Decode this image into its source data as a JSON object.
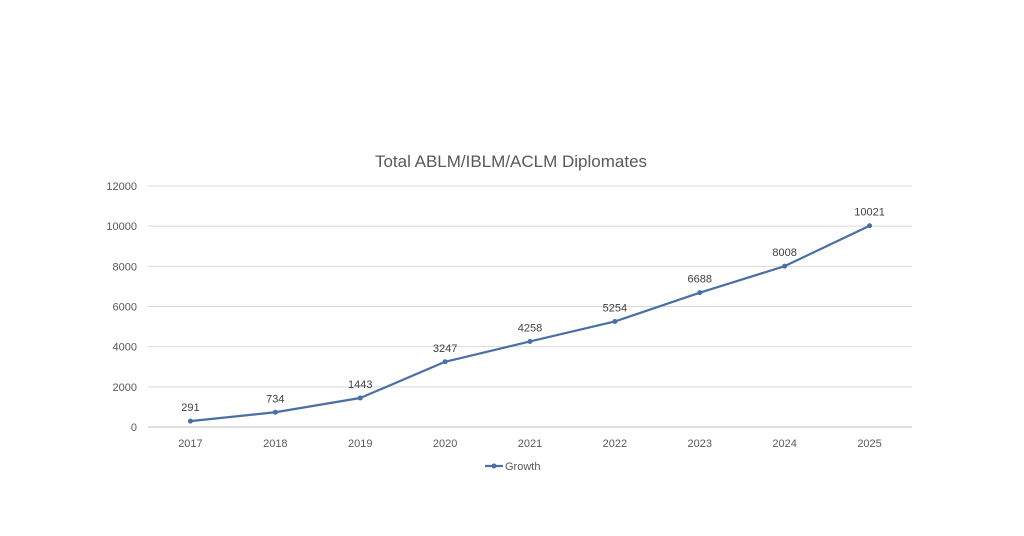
{
  "chart_data": {
    "type": "line",
    "title": "Total ABLM/IBLM/ACLM Diplomates",
    "xlabel": "",
    "ylabel": "",
    "categories": [
      "2017",
      "2018",
      "2019",
      "2020",
      "2021",
      "2022",
      "2023",
      "2024",
      "2025"
    ],
    "series": [
      {
        "name": "Growth",
        "values": [
          291,
          734,
          1443,
          3247,
          4258,
          5254,
          6688,
          8008,
          10021
        ],
        "color": "#4A6FA5"
      }
    ],
    "data_labels": true,
    "ylim": [
      0,
      12000
    ],
    "yticks": [
      0,
      2000,
      4000,
      6000,
      8000,
      10000,
      12000
    ],
    "grid": true,
    "legend": "bottom"
  }
}
